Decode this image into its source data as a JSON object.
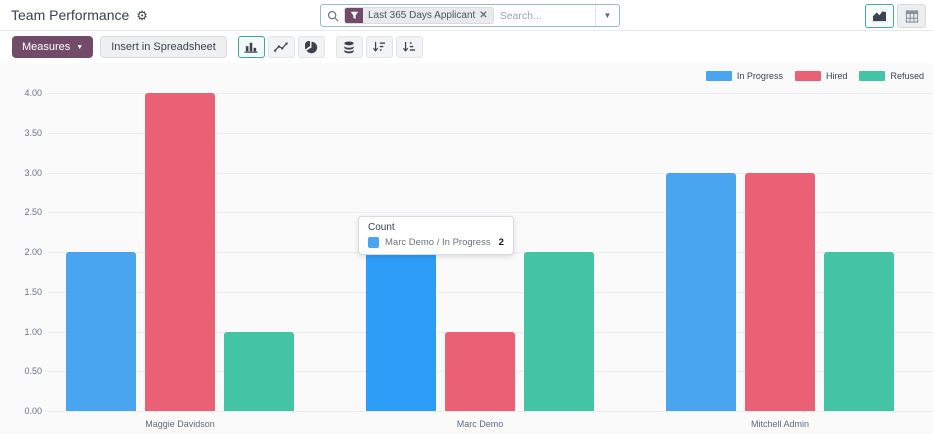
{
  "header": {
    "title": "Team Performance",
    "search": {
      "facet_label": "Last 365 Days Applicant",
      "placeholder": "Search..."
    }
  },
  "toolbar": {
    "measures_label": "Measures",
    "insert_label": "Insert in Spreadsheet"
  },
  "colors": {
    "brand": "#714B67",
    "selected_teal": "#3ea59c",
    "in_progress": "#4aa5f0",
    "in_progress_hover": "#2e9df7",
    "hired": "#ea6075",
    "refused": "#43c5a5",
    "grid": "#ebebf0"
  },
  "tooltip": {
    "title": "Count",
    "label": "Marc Demo / In Progress",
    "value": "2"
  },
  "chart_data": {
    "type": "bar",
    "title": "",
    "xlabel": "",
    "ylabel": "Count",
    "categories": [
      "Maggie Davidson",
      "Marc Demo",
      "Mitchell Admin"
    ],
    "series": [
      {
        "name": "In Progress",
        "color": "#4aa5f0",
        "values": [
          2,
          2,
          3
        ]
      },
      {
        "name": "Hired",
        "color": "#ea6075",
        "values": [
          4,
          1,
          3
        ]
      },
      {
        "name": "Refused",
        "color": "#43c5a5",
        "values": [
          1,
          2,
          2
        ]
      }
    ],
    "ylim": [
      0,
      4
    ],
    "ytick_step": 0.5,
    "grid": true,
    "legend_position": "top-right",
    "hovered_bar": {
      "category_index": 1,
      "series_index": 0
    }
  }
}
